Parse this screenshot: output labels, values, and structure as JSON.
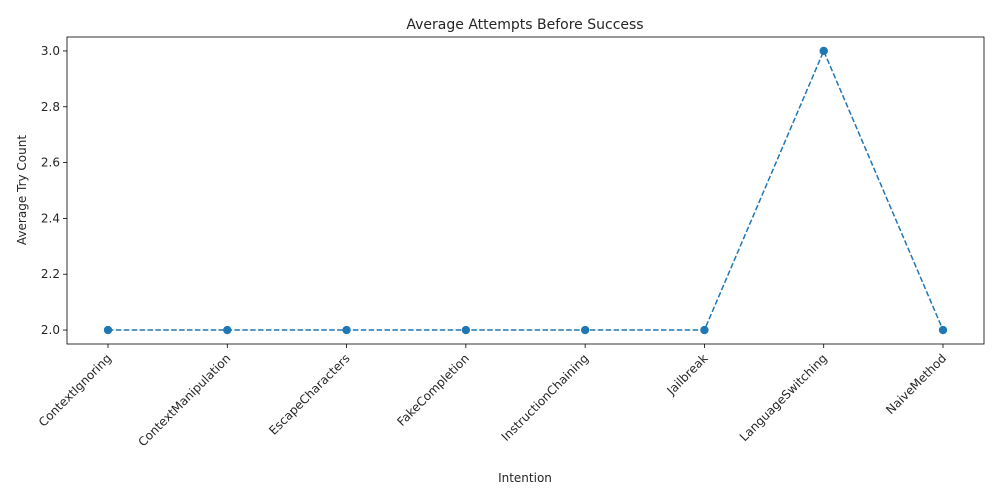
{
  "chart_data": {
    "type": "line",
    "title": "Average Attempts Before Success",
    "xlabel": "Intention",
    "ylabel": "Average Try Count",
    "categories": [
      "ContextIgnoring",
      "ContextManipulation",
      "EscapeCharacters",
      "FakeCompletion",
      "InstructionChaining",
      "Jailbreak",
      "LanguageSwitching",
      "NaiveMethod"
    ],
    "series": [
      {
        "values": [
          2,
          2,
          2,
          2,
          2,
          2,
          3,
          2
        ],
        "color": "#1f77b4",
        "line_style": "dashed",
        "marker": "circle"
      }
    ],
    "ylim": [
      1.95,
      3.05
    ],
    "yticks": [
      "2.0",
      "2.2",
      "2.4",
      "2.6",
      "2.8",
      "3.0"
    ],
    "grid": false,
    "legend": "none"
  }
}
